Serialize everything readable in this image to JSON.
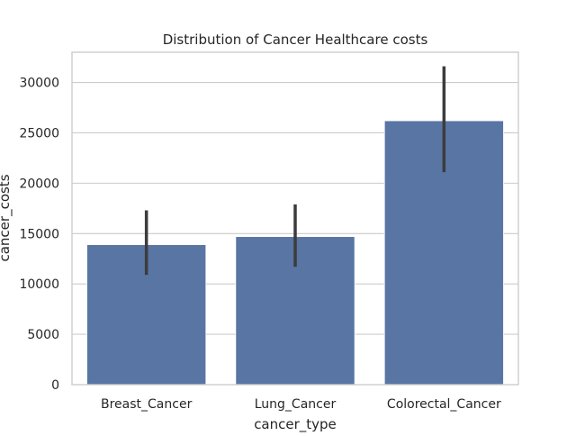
{
  "chart_data": {
    "type": "bar",
    "title": "Distribution of Cancer Healthcare costs",
    "xlabel": "cancer_type",
    "ylabel": "cancer_costs",
    "categories": [
      "Breast_Cancer",
      "Lung_Cancer",
      "Colorectal_Cancer"
    ],
    "values": [
      13900,
      14700,
      26200
    ],
    "error_bars": [
      {
        "low": 10900,
        "high": 17300
      },
      {
        "low": 11700,
        "high": 17900
      },
      {
        "low": 21100,
        "high": 31600
      }
    ],
    "ylim": [
      0,
      33000
    ],
    "yticks": [
      0,
      5000,
      10000,
      15000,
      20000,
      25000,
      30000
    ],
    "ytick_labels": [
      "0",
      "5000",
      "10000",
      "15000",
      "20000",
      "25000",
      "30000"
    ],
    "grid": true,
    "bar_color": "#5875a4",
    "error_color": "#3c3c3c"
  }
}
